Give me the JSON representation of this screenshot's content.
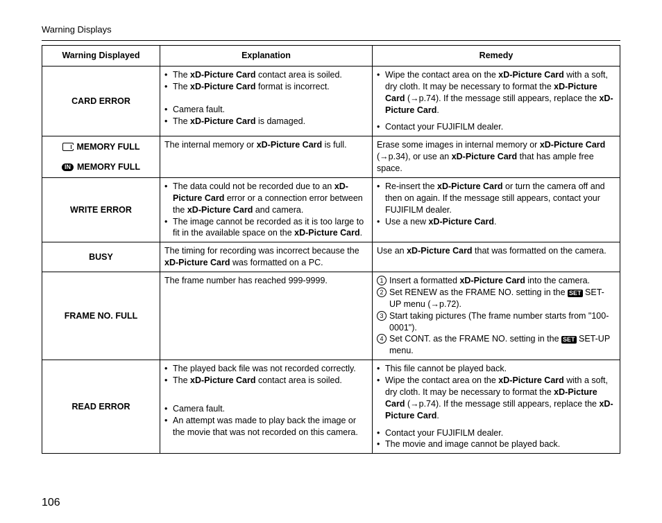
{
  "page": {
    "title": "Warning Displays",
    "number": "106"
  },
  "headers": {
    "c1": "Warning Displayed",
    "c2": "Explanation",
    "c3": "Remedy"
  },
  "bold": {
    "xd": "xD-Picture Card"
  },
  "r1": {
    "label": "CARD ERROR",
    "exp_a1_pre": "The ",
    "exp_a1_post": " contact area is soiled.",
    "exp_a2_pre": "The ",
    "exp_a2_post": " format is incorrect.",
    "exp_b1": "Camera fault.",
    "exp_b2_pre": "The ",
    "exp_b2_post": " is damaged.",
    "rem_a1_pre": "Wipe the contact area on the ",
    "rem_a1_mid": " with a soft, dry cloth. It may be necessary to format the ",
    "rem_a1_post": " (→p.74). If the message still appears, replace the ",
    "rem_a1_end": ".",
    "rem_b1": "Contact your FUJIFILM dealer."
  },
  "r2": {
    "label1": "MEMORY FULL",
    "label2": "MEMORY FULL",
    "icon_in": "IN",
    "exp_pre": "The internal memory or ",
    "exp_post": " is full.",
    "rem_pre": "Erase some images in internal memory or ",
    "rem_mid": " (→p.34), or use an ",
    "rem_post": " that has ample free space."
  },
  "r3": {
    "label": "WRITE ERROR",
    "exp1_pre": "The data could not be recorded due to an ",
    "exp1_mid": " error or a connection error between the ",
    "exp1_post": " and camera.",
    "exp2_pre": "The image cannot be recorded as it is too large to fit in the available space on the ",
    "exp2_post": ".",
    "rem1_pre": "Re-insert the ",
    "rem1_post": " or turn the camera off and then on again. If the message still appears, contact your FUJIFILM dealer.",
    "rem2_pre": "Use a new ",
    "rem2_post": "."
  },
  "r4": {
    "label": "BUSY",
    "exp_pre": "The timing for recording was incorrect because the ",
    "exp_post": " was formatted on a PC.",
    "rem_pre": "Use an ",
    "rem_post": " that was formatted on the camera."
  },
  "r5": {
    "label": "FRAME NO. FULL",
    "set": "SET",
    "exp": "The frame number has reached 999-9999.",
    "rem1_pre": "Insert a formatted ",
    "rem1_post": " into the camera.",
    "rem2_pre": "Set RENEW as the FRAME NO. setting in the ",
    "rem2_post": " SET-UP menu (→p.72).",
    "rem3": "Start taking pictures (The frame number starts from \"100-0001\").",
    "rem4_pre": "Set CONT. as the FRAME NO. setting in the ",
    "rem4_post": " SET-UP menu."
  },
  "r6": {
    "label": "READ ERROR",
    "exp_a1": "The played back file was not recorded correctly.",
    "exp_a2_pre": "The ",
    "exp_a2_post": " contact area is soiled.",
    "exp_b1": "Camera fault.",
    "exp_b2": "An attempt was made to play back the image or the movie that was not recorded on this camera.",
    "rem_a1": "This file cannot be played back.",
    "rem_a2_pre": "Wipe the contact area on the ",
    "rem_a2_mid": " with a soft, dry cloth. It may be necessary to format the ",
    "rem_a2_post": " (→p.74). If the message still appears, replace the ",
    "rem_a2_end": ".",
    "rem_b1": "Contact your FUJIFILM dealer.",
    "rem_b2": "The movie and image cannot be played back."
  }
}
